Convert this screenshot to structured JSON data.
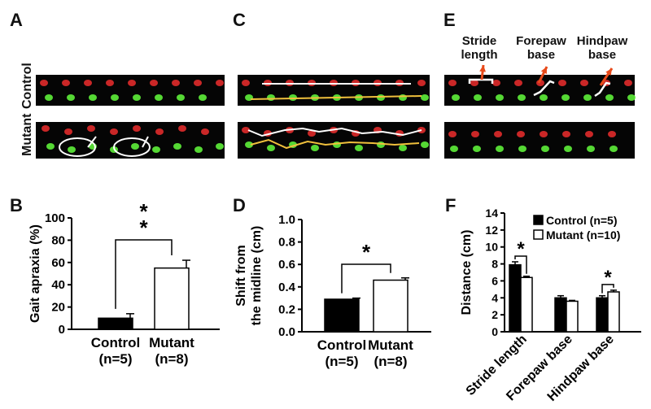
{
  "colors": {
    "red_print": "#e02b2b",
    "green_print": "#5ef03a",
    "trace_white": "#ffffff",
    "trace_yellow": "#f0c03c",
    "arrow": "#e84a1a"
  },
  "panels": {
    "A": "A",
    "B": "B",
    "C": "C",
    "D": "D",
    "E": "E",
    "F": "F"
  },
  "row_labels": {
    "control": "Control",
    "mutant": "Mutant"
  },
  "panel_e_annotations": {
    "stride": [
      "Stride",
      "length"
    ],
    "forepaw": [
      "Forepaw",
      "base"
    ],
    "hindpaw": [
      "Hindpaw",
      "base"
    ]
  },
  "chart_data": [
    {
      "panel": "B",
      "type": "bar",
      "categories": [
        "Control",
        "Mutant"
      ],
      "category_sublabels": [
        "(n=5)",
        "(n=8)"
      ],
      "values": [
        10,
        55
      ],
      "errors": [
        4,
        7
      ],
      "bar_fills": [
        "#000000",
        "#ffffff"
      ],
      "ylabel": "Gait apraxia (%)",
      "ylim": [
        0,
        100
      ],
      "yticks": [
        "0",
        "20",
        "40",
        "60",
        "80",
        "100"
      ],
      "significance": "**"
    },
    {
      "panel": "D",
      "type": "bar",
      "categories": [
        "Control",
        "Mutant"
      ],
      "category_sublabels": [
        "(n=5)",
        "(n=8)"
      ],
      "values": [
        0.29,
        0.46
      ],
      "errors": [
        0.01,
        0.02
      ],
      "bar_fills": [
        "#000000",
        "#ffffff"
      ],
      "ylabel": [
        "Shift from",
        "the midline (cm)"
      ],
      "ylim": [
        0,
        1.0
      ],
      "yticks": [
        "0.0",
        "0.2",
        "0.4",
        "0.6",
        "0.8",
        "1.0"
      ],
      "significance": "*"
    },
    {
      "panel": "F",
      "type": "bar",
      "categories": [
        "Stride length",
        "Forepaw base",
        "Hindpaw base"
      ],
      "series": [
        {
          "name": "Control (n=5)",
          "values": [
            7.9,
            4.0,
            4.0
          ],
          "errors": [
            0.35,
            0.25,
            0.25
          ],
          "fill": "#000000"
        },
        {
          "name": "Mutant (n=10)",
          "values": [
            6.4,
            3.6,
            4.7
          ],
          "errors": [
            0.15,
            0.1,
            0.2
          ],
          "fill": "#ffffff"
        }
      ],
      "ylabel": "Distance (cm)",
      "ylim": [
        0,
        14
      ],
      "yticks": [
        "0",
        "2",
        "4",
        "6",
        "8",
        "10",
        "12",
        "14"
      ],
      "legend": "top-right",
      "significance": [
        "*",
        "",
        "*"
      ]
    }
  ]
}
